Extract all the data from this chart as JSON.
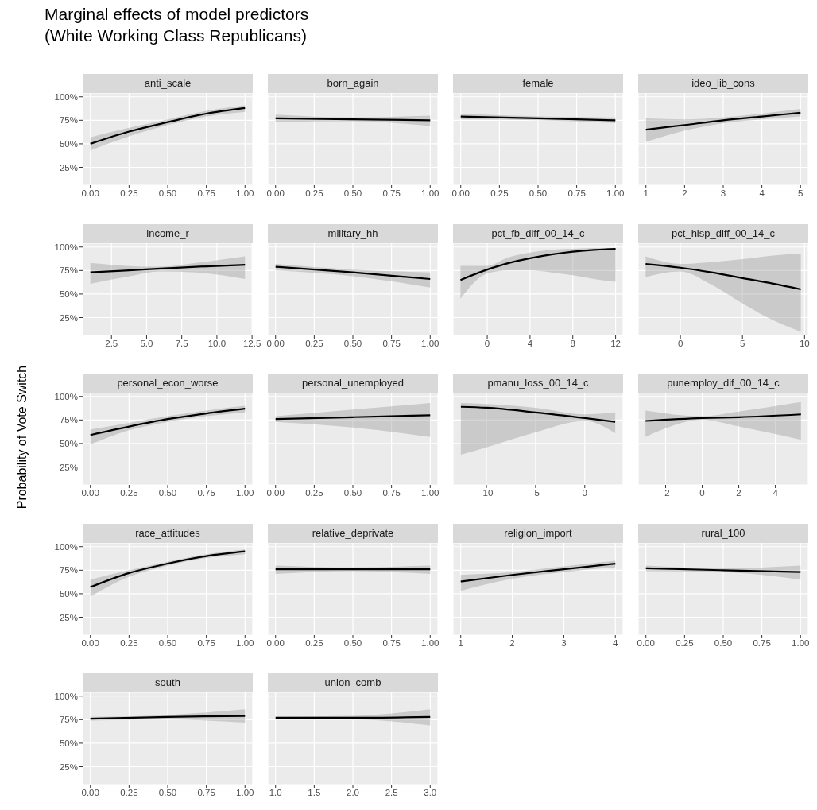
{
  "chart_data": [
    {
      "type": "line",
      "title": "anti_scale",
      "annotations": [
        "Marginal effects of model predictors\n(White Working Class Republicans)"
      ],
      "x": [
        0,
        0.25,
        0.5,
        0.75,
        1
      ],
      "series": [
        {
          "color": "#000000",
          "values": [
            50,
            63,
            73,
            82,
            88
          ],
          "lower": [
            43,
            58,
            70,
            79,
            84
          ],
          "upper": [
            57,
            67,
            76,
            85,
            91
          ]
        }
      ],
      "xlim": [
        -0.05,
        1.05
      ],
      "xticks": [
        {
          "value": 0,
          "label": "0.00"
        },
        {
          "value": 0.25,
          "label": "0.25"
        },
        {
          "value": 0.5,
          "label": "0.50"
        },
        {
          "value": 0.75,
          "label": "0.75"
        },
        {
          "value": 1,
          "label": "1.00"
        }
      ],
      "ylim": [
        6,
        104
      ],
      "yticks": [
        {
          "value": 25,
          "label": "25%"
        },
        {
          "value": 50,
          "label": "50%"
        },
        {
          "value": 75,
          "label": "75%"
        },
        {
          "value": 100,
          "label": "100%"
        }
      ],
      "grid": true
    },
    {
      "type": "line",
      "title": "born_again",
      "x": [
        0,
        0.5,
        1
      ],
      "series": [
        {
          "color": "#000000",
          "values": [
            77,
            76,
            75
          ],
          "lower": [
            73,
            74,
            69
          ],
          "upper": [
            81,
            78,
            80
          ]
        }
      ],
      "xlim": [
        -0.05,
        1.05
      ],
      "xticks": [
        {
          "value": 0,
          "label": "0.00"
        },
        {
          "value": 0.25,
          "label": "0.25"
        },
        {
          "value": 0.5,
          "label": "0.50"
        },
        {
          "value": 0.75,
          "label": "0.75"
        },
        {
          "value": 1,
          "label": "1.00"
        }
      ],
      "ylim": [
        6,
        104
      ],
      "yticks": [
        {
          "value": 25,
          "label": null
        },
        {
          "value": 50,
          "label": null
        },
        {
          "value": 75,
          "label": null
        },
        {
          "value": 100,
          "label": null
        }
      ],
      "grid": true,
      "tick_labels": "x"
    },
    {
      "type": "line",
      "title": "female",
      "x": [
        0,
        0.5,
        1
      ],
      "series": [
        {
          "color": "#000000",
          "values": [
            79,
            77,
            75
          ],
          "lower": [
            76,
            75,
            72
          ],
          "upper": [
            82,
            79,
            78
          ]
        }
      ],
      "xlim": [
        -0.05,
        1.05
      ],
      "xticks": [
        {
          "value": 0,
          "label": "0.00"
        },
        {
          "value": 0.25,
          "label": "0.25"
        },
        {
          "value": 0.5,
          "label": "0.50"
        },
        {
          "value": 0.75,
          "label": "0.75"
        },
        {
          "value": 1,
          "label": "1.00"
        }
      ],
      "ylim": [
        6,
        104
      ],
      "yticks": [
        {
          "value": 25,
          "label": null
        },
        {
          "value": 50,
          "label": null
        },
        {
          "value": 75,
          "label": null
        },
        {
          "value": 100,
          "label": null
        }
      ],
      "grid": true,
      "tick_labels": "x"
    },
    {
      "type": "line",
      "title": "ideo_lib_cons",
      "x": [
        1,
        2,
        3,
        4,
        5
      ],
      "series": [
        {
          "color": "#000000",
          "values": [
            65,
            70,
            75,
            79,
            83
          ],
          "lower": [
            52,
            64,
            72,
            76,
            79
          ],
          "upper": [
            77,
            76,
            78,
            82,
            87
          ]
        }
      ],
      "xlim": [
        0.8,
        5.2
      ],
      "xticks": [
        1,
        2,
        3,
        4,
        5
      ],
      "ylim": [
        6,
        104
      ],
      "yticks": [
        {
          "value": 25,
          "label": null
        },
        {
          "value": 50,
          "label": null
        },
        {
          "value": 75,
          "label": null
        },
        {
          "value": 100,
          "label": null
        }
      ],
      "grid": true,
      "tick_labels": "x"
    },
    {
      "type": "line",
      "title": "income_r",
      "x": [
        1,
        3.5,
        6,
        8.5,
        12
      ],
      "series": [
        {
          "color": "#000000",
          "values": [
            73,
            75,
            77,
            79,
            81
          ],
          "lower": [
            61,
            68,
            74,
            73,
            66
          ],
          "upper": [
            83,
            80,
            79,
            83,
            90
          ]
        }
      ],
      "xlim": [
        0.45,
        12.55
      ],
      "xticks": [
        2.5,
        {
          "value": 5,
          "label": "5.0"
        },
        7.5,
        {
          "value": 10,
          "label": "10.0"
        },
        12.5
      ],
      "ylim": [
        6,
        104
      ],
      "yticks": [
        {
          "value": 25,
          "label": "25%"
        },
        {
          "value": 50,
          "label": "50%"
        },
        {
          "value": 75,
          "label": "75%"
        },
        {
          "value": 100,
          "label": "100%"
        }
      ],
      "grid": true
    },
    {
      "type": "line",
      "title": "military_hh",
      "x": [
        0,
        0.5,
        1
      ],
      "series": [
        {
          "color": "#000000",
          "values": [
            79,
            73,
            66
          ],
          "lower": [
            75,
            69,
            57
          ],
          "upper": [
            82,
            76,
            73
          ]
        }
      ],
      "xlim": [
        -0.05,
        1.05
      ],
      "xticks": [
        {
          "value": 0,
          "label": "0.00"
        },
        {
          "value": 0.25,
          "label": "0.25"
        },
        {
          "value": 0.5,
          "label": "0.50"
        },
        {
          "value": 0.75,
          "label": "0.75"
        },
        {
          "value": 1,
          "label": "1.00"
        }
      ],
      "ylim": [
        6,
        104
      ],
      "yticks": [
        {
          "value": 25,
          "label": null
        },
        {
          "value": 50,
          "label": null
        },
        {
          "value": 75,
          "label": null
        },
        {
          "value": 100,
          "label": null
        }
      ],
      "grid": true,
      "tick_labels": "x"
    },
    {
      "type": "line",
      "title": "pct_fb_diff_00_14_c",
      "x": [
        -2.5,
        0,
        2,
        4,
        6,
        8,
        10,
        12
      ],
      "series": [
        {
          "color": "#000000",
          "values": [
            65,
            76,
            83,
            88,
            92,
            95,
            97,
            98
          ],
          "lower": [
            45,
            72,
            75,
            75,
            73,
            70,
            66,
            63
          ],
          "upper": [
            80,
            80,
            89,
            94,
            97,
            98,
            99,
            99
          ]
        }
      ],
      "xlim": [
        -3.2,
        12.7
      ],
      "xticks": [
        0,
        4,
        8,
        12
      ],
      "ylim": [
        6,
        104
      ],
      "yticks": [
        {
          "value": 25,
          "label": null
        },
        {
          "value": 50,
          "label": null
        },
        {
          "value": 75,
          "label": null
        },
        {
          "value": 100,
          "label": null
        }
      ],
      "grid": true,
      "tick_labels": "x"
    },
    {
      "type": "line",
      "title": "pct_hisp_diff_00_14_c",
      "x": [
        -2.8,
        0,
        2.5,
        5,
        7.5,
        9.7
      ],
      "series": [
        {
          "color": "#000000",
          "values": [
            82,
            78,
            73,
            67,
            61,
            55
          ],
          "lower": [
            68,
            74,
            60,
            40,
            22,
            10
          ],
          "upper": [
            90,
            82,
            84,
            87,
            91,
            93
          ]
        }
      ],
      "xlim": [
        -3.4,
        10.3
      ],
      "xticks": [
        0,
        5,
        10
      ],
      "ylim": [
        6,
        104
      ],
      "yticks": [
        {
          "value": 25,
          "label": null
        },
        {
          "value": 50,
          "label": null
        },
        {
          "value": 75,
          "label": null
        },
        {
          "value": 100,
          "label": null
        }
      ],
      "grid": true,
      "tick_labels": "x"
    },
    {
      "type": "line",
      "title": "personal_econ_worse",
      "ylabel": "Probability of Vote Switch",
      "x": [
        0,
        0.25,
        0.5,
        0.75,
        1
      ],
      "series": [
        {
          "color": "#000000",
          "values": [
            59,
            68,
            76,
            82,
            87
          ],
          "lower": [
            49,
            64,
            73,
            79,
            83
          ],
          "upper": [
            65,
            72,
            79,
            85,
            90
          ]
        }
      ],
      "xlim": [
        -0.05,
        1.05
      ],
      "xticks": [
        {
          "value": 0,
          "label": "0.00"
        },
        {
          "value": 0.25,
          "label": "0.25"
        },
        {
          "value": 0.5,
          "label": "0.50"
        },
        {
          "value": 0.75,
          "label": "0.75"
        },
        {
          "value": 1,
          "label": "1.00"
        }
      ],
      "ylim": [
        6,
        104
      ],
      "yticks": [
        {
          "value": 25,
          "label": "25%"
        },
        {
          "value": 50,
          "label": "50%"
        },
        {
          "value": 75,
          "label": "75%"
        },
        {
          "value": 100,
          "label": "100%"
        }
      ],
      "grid": true
    },
    {
      "type": "line",
      "title": "personal_unemployed",
      "x": [
        0,
        0.5,
        1
      ],
      "series": [
        {
          "color": "#000000",
          "values": [
            76,
            78,
            80
          ],
          "lower": [
            73,
            67,
            57
          ],
          "upper": [
            79,
            86,
            93
          ]
        }
      ],
      "xlim": [
        -0.05,
        1.05
      ],
      "xticks": [
        {
          "value": 0,
          "label": "0.00"
        },
        {
          "value": 0.25,
          "label": "0.25"
        },
        {
          "value": 0.5,
          "label": "0.50"
        },
        {
          "value": 0.75,
          "label": "0.75"
        },
        {
          "value": 1,
          "label": "1.00"
        }
      ],
      "ylim": [
        6,
        104
      ],
      "yticks": [
        {
          "value": 25,
          "label": null
        },
        {
          "value": 50,
          "label": null
        },
        {
          "value": 75,
          "label": null
        },
        {
          "value": 100,
          "label": null
        }
      ],
      "grid": true,
      "tick_labels": "x"
    },
    {
      "type": "line",
      "title": "pmanu_loss_00_14_c",
      "x": [
        -12.6,
        -10,
        -5,
        0,
        3.1
      ],
      "series": [
        {
          "color": "#000000",
          "values": [
            89,
            88,
            83,
            77,
            73
          ],
          "lower": [
            38,
            46,
            62,
            74,
            61
          ],
          "upper": [
            93,
            92,
            88,
            81,
            83
          ]
        }
      ],
      "xlim": [
        -13.4,
        3.9
      ],
      "xticks": [
        -10,
        -5,
        0
      ],
      "ylim": [
        6,
        104
      ],
      "yticks": [
        {
          "value": 25,
          "label": null
        },
        {
          "value": 50,
          "label": null
        },
        {
          "value": 75,
          "label": null
        },
        {
          "value": 100,
          "label": null
        }
      ],
      "grid": true,
      "tick_labels": "x"
    },
    {
      "type": "line",
      "title": "punemploy_dif_00_14_c",
      "x": [
        -3.1,
        0,
        2,
        5.4
      ],
      "series": [
        {
          "color": "#000000",
          "values": [
            74,
            77,
            78,
            81
          ],
          "lower": [
            57,
            75,
            68,
            54
          ],
          "upper": [
            85,
            79,
            84,
            94
          ]
        }
      ],
      "xlim": [
        -3.5,
        5.8
      ],
      "xticks": [
        -2,
        0,
        2,
        4
      ],
      "ylim": [
        6,
        104
      ],
      "yticks": [
        {
          "value": 25,
          "label": null
        },
        {
          "value": 50,
          "label": null
        },
        {
          "value": 75,
          "label": null
        },
        {
          "value": 100,
          "label": null
        }
      ],
      "grid": true,
      "tick_labels": "x"
    },
    {
      "type": "line",
      "title": "race_attitudes",
      "x": [
        0,
        0.25,
        0.5,
        0.75,
        1
      ],
      "series": [
        {
          "color": "#000000",
          "values": [
            57,
            72,
            82,
            90,
            95
          ],
          "lower": [
            47,
            68,
            80,
            88,
            92
          ],
          "upper": [
            65,
            75,
            84,
            92,
            97
          ]
        }
      ],
      "xlim": [
        -0.05,
        1.05
      ],
      "xticks": [
        {
          "value": 0,
          "label": "0.00"
        },
        {
          "value": 0.25,
          "label": "0.25"
        },
        {
          "value": 0.5,
          "label": "0.50"
        },
        {
          "value": 0.75,
          "label": "0.75"
        },
        {
          "value": 1,
          "label": "1.00"
        }
      ],
      "ylim": [
        6,
        104
      ],
      "yticks": [
        {
          "value": 25,
          "label": "25%"
        },
        {
          "value": 50,
          "label": "50%"
        },
        {
          "value": 75,
          "label": "75%"
        },
        {
          "value": 100,
          "label": "100%"
        }
      ],
      "grid": true
    },
    {
      "type": "line",
      "title": "relative_deprivate",
      "x": [
        0,
        0.5,
        1
      ],
      "series": [
        {
          "color": "#000000",
          "values": [
            76,
            76,
            76
          ],
          "lower": [
            71,
            74,
            71
          ],
          "upper": [
            80,
            78,
            80
          ]
        }
      ],
      "xlim": [
        -0.05,
        1.05
      ],
      "xticks": [
        {
          "value": 0,
          "label": "0.00"
        },
        {
          "value": 0.25,
          "label": "0.25"
        },
        {
          "value": 0.5,
          "label": "0.50"
        },
        {
          "value": 0.75,
          "label": "0.75"
        },
        {
          "value": 1,
          "label": "1.00"
        }
      ],
      "ylim": [
        6,
        104
      ],
      "yticks": [
        {
          "value": 25,
          "label": null
        },
        {
          "value": 50,
          "label": null
        },
        {
          "value": 75,
          "label": null
        },
        {
          "value": 100,
          "label": null
        }
      ],
      "grid": true,
      "tick_labels": "x"
    },
    {
      "type": "line",
      "title": "religion_import",
      "x": [
        1,
        2,
        3,
        4
      ],
      "series": [
        {
          "color": "#000000",
          "values": [
            63,
            70,
            76,
            82
          ],
          "lower": [
            53,
            66,
            73,
            78
          ],
          "upper": [
            70,
            73,
            79,
            85
          ]
        }
      ],
      "xlim": [
        0.85,
        4.15
      ],
      "xticks": [
        1,
        2,
        3,
        4
      ],
      "ylim": [
        6,
        104
      ],
      "yticks": [
        {
          "value": 25,
          "label": null
        },
        {
          "value": 50,
          "label": null
        },
        {
          "value": 75,
          "label": null
        },
        {
          "value": 100,
          "label": null
        }
      ],
      "grid": true,
      "tick_labels": "x"
    },
    {
      "type": "line",
      "title": "rural_100",
      "x": [
        0,
        0.5,
        1
      ],
      "series": [
        {
          "color": "#000000",
          "values": [
            77,
            75,
            73
          ],
          "lower": [
            74,
            73,
            65
          ],
          "upper": [
            80,
            77,
            80
          ]
        }
      ],
      "xlim": [
        -0.05,
        1.05
      ],
      "xticks": [
        {
          "value": 0,
          "label": "0.00"
        },
        {
          "value": 0.25,
          "label": "0.25"
        },
        {
          "value": 0.5,
          "label": "0.50"
        },
        {
          "value": 0.75,
          "label": "0.75"
        },
        {
          "value": 1,
          "label": "1.00"
        }
      ],
      "ylim": [
        6,
        104
      ],
      "yticks": [
        {
          "value": 25,
          "label": null
        },
        {
          "value": 50,
          "label": null
        },
        {
          "value": 75,
          "label": null
        },
        {
          "value": 100,
          "label": null
        }
      ],
      "grid": true,
      "tick_labels": "x"
    },
    {
      "type": "line",
      "title": "south",
      "x": [
        0,
        0.5,
        1
      ],
      "series": [
        {
          "color": "#000000",
          "values": [
            76,
            78,
            79
          ],
          "lower": [
            74,
            75,
            72
          ],
          "upper": [
            78,
            80,
            86
          ]
        }
      ],
      "xlim": [
        -0.05,
        1.05
      ],
      "xticks": [
        {
          "value": 0,
          "label": "0.00"
        },
        {
          "value": 0.25,
          "label": "0.25"
        },
        {
          "value": 0.5,
          "label": "0.50"
        },
        {
          "value": 0.75,
          "label": "0.75"
        },
        {
          "value": 1,
          "label": "1.00"
        }
      ],
      "ylim": [
        6,
        104
      ],
      "yticks": [
        {
          "value": 25,
          "label": "25%"
        },
        {
          "value": 50,
          "label": "50%"
        },
        {
          "value": 75,
          "label": "75%"
        },
        {
          "value": 100,
          "label": "100%"
        }
      ],
      "grid": true
    },
    {
      "type": "line",
      "title": "union_comb",
      "x": [
        1,
        2,
        3
      ],
      "series": [
        {
          "color": "#000000",
          "values": [
            77,
            77,
            78
          ],
          "lower": [
            75,
            75,
            69
          ],
          "upper": [
            78,
            79,
            86
          ]
        }
      ],
      "xlim": [
        0.9,
        3.1
      ],
      "xticks": [
        {
          "value": 1,
          "label": "1.0"
        },
        1.5,
        {
          "value": 2,
          "label": "2.0"
        },
        2.5,
        {
          "value": 3,
          "label": "3.0"
        }
      ],
      "ylim": [
        6,
        104
      ],
      "yticks": [
        {
          "value": 25,
          "label": null
        },
        {
          "value": 50,
          "label": null
        },
        {
          "value": 75,
          "label": null
        },
        {
          "value": 100,
          "label": null
        }
      ],
      "grid": true,
      "tick_labels": "x"
    }
  ]
}
